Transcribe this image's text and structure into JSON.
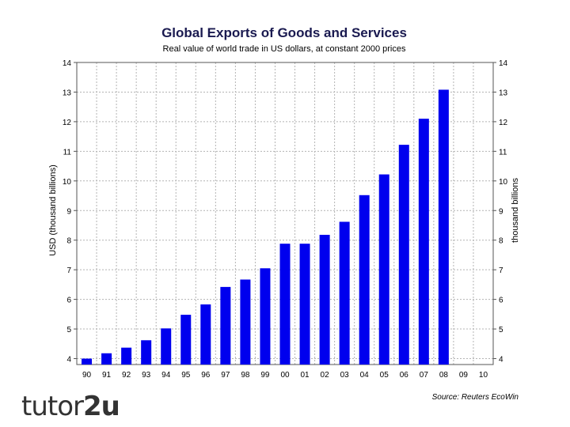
{
  "chart_data": {
    "type": "bar",
    "title": "Global Exports of Goods and Services",
    "subtitle": "Real value of world trade in US dollars, at constant 2000 prices",
    "ylabel_left": "USD (thousand billions)",
    "ylabel_right": "thousand billions",
    "source": "Source: Reuters EcoWin",
    "ylim": [
      3.8,
      14
    ],
    "yticks": [
      4,
      5,
      6,
      7,
      8,
      9,
      10,
      11,
      12,
      13,
      14
    ],
    "categories": [
      "90",
      "91",
      "92",
      "93",
      "94",
      "95",
      "96",
      "97",
      "98",
      "99",
      "00",
      "01",
      "02",
      "03",
      "04",
      "05",
      "06",
      "07",
      "08",
      "09",
      "10"
    ],
    "values": [
      4.0,
      4.18,
      4.37,
      4.62,
      5.02,
      5.48,
      5.83,
      6.42,
      6.67,
      7.05,
      7.88,
      7.88,
      8.18,
      8.62,
      9.52,
      10.22,
      11.22,
      12.1,
      13.08,
      null,
      null
    ],
    "bar_color": "#0000ee",
    "grid": true
  },
  "logo": {
    "part1": "tutor",
    "part2": "2u"
  }
}
